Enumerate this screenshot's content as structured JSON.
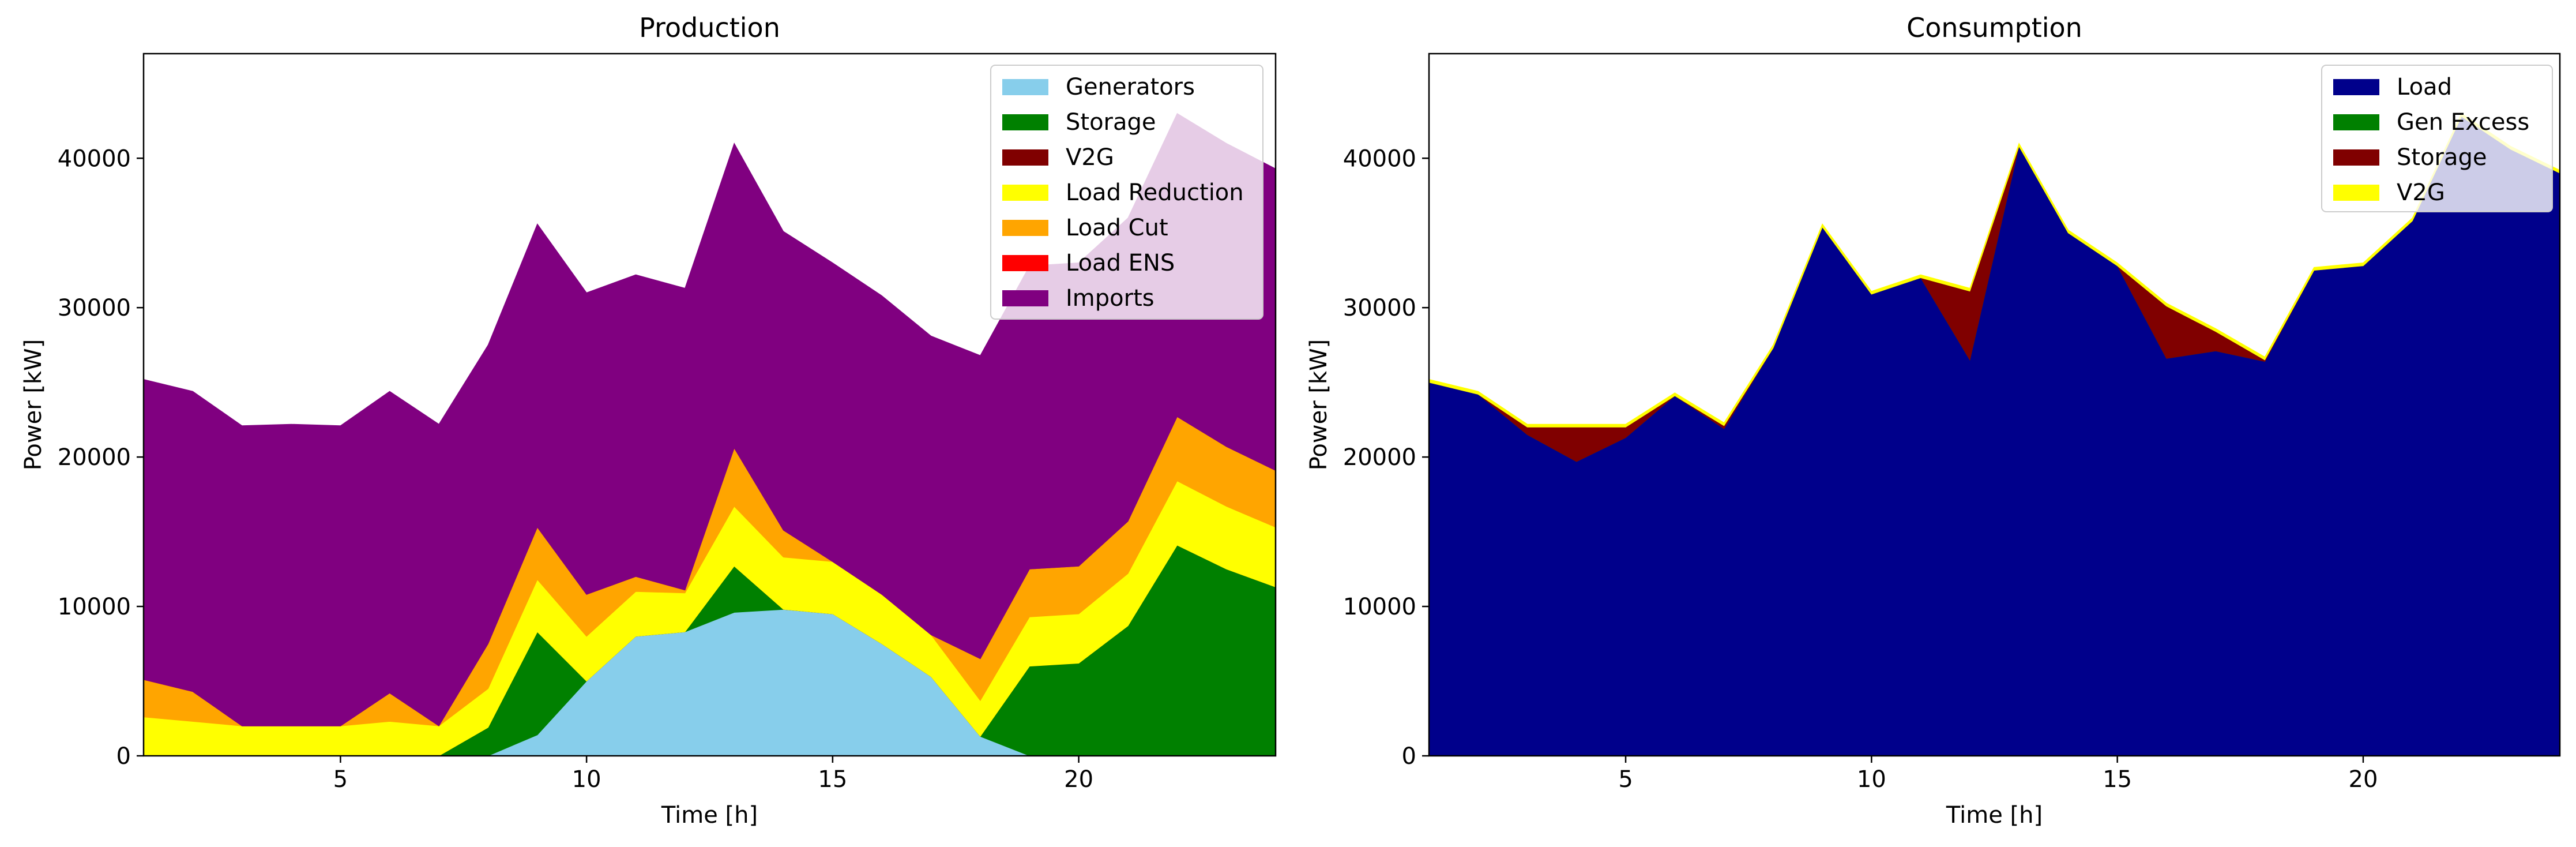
{
  "chart_data": [
    {
      "type": "area",
      "stacked": true,
      "title": "Production",
      "xlabel": "Time [h]",
      "ylabel": "Power [kW]",
      "xlim": [
        1,
        24
      ],
      "ylim": [
        0,
        47000
      ],
      "xticks": [
        5,
        10,
        15,
        20
      ],
      "yticks": [
        0,
        10000,
        20000,
        30000,
        40000
      ],
      "grid": false,
      "legend_position": "top-right",
      "x": [
        1,
        2,
        3,
        4,
        5,
        6,
        7,
        8,
        9,
        10,
        11,
        12,
        13,
        14,
        15,
        16,
        17,
        18,
        19,
        20,
        21,
        22,
        23,
        24
      ],
      "series": [
        {
          "name": "Generators",
          "color": "#87ceeb",
          "values": [
            0,
            0,
            0,
            0,
            0,
            0,
            0,
            0,
            1400,
            5000,
            8000,
            8300,
            9600,
            9800,
            9500,
            7500,
            5300,
            1300,
            0,
            0,
            0,
            0,
            0,
            0
          ]
        },
        {
          "name": "Storage",
          "color": "#008000",
          "values": [
            0,
            0,
            0,
            0,
            0,
            0,
            0,
            1900,
            6900,
            0,
            0,
            0,
            3100,
            0,
            0,
            0,
            0,
            0,
            6000,
            6200,
            8700,
            14100,
            12500,
            11300
          ]
        },
        {
          "name": "V2G",
          "color": "#800000",
          "values": [
            0,
            0,
            0,
            0,
            0,
            0,
            0,
            0,
            0,
            0,
            0,
            0,
            0,
            0,
            0,
            0,
            0,
            0,
            0,
            0,
            0,
            0,
            0,
            0
          ]
        },
        {
          "name": "Load Reduction",
          "color": "#ffff00",
          "values": [
            2600,
            2300,
            2000,
            2000,
            2000,
            2300,
            2000,
            2600,
            3500,
            3000,
            3000,
            2600,
            4000,
            3500,
            3500,
            3300,
            2800,
            2400,
            3300,
            3300,
            3500,
            4300,
            4200,
            4000
          ]
        },
        {
          "name": "Load Cut",
          "color": "#ffa500",
          "values": [
            2500,
            2000,
            0,
            0,
            0,
            1900,
            0,
            3000,
            3500,
            2800,
            1000,
            200,
            3900,
            1800,
            0,
            0,
            0,
            2800,
            3200,
            3200,
            3500,
            4300,
            4000,
            3800
          ]
        },
        {
          "name": "Load ENS",
          "color": "#ff0000",
          "values": [
            0,
            0,
            0,
            0,
            0,
            0,
            0,
            0,
            0,
            0,
            0,
            0,
            0,
            0,
            0,
            0,
            0,
            0,
            0,
            0,
            0,
            0,
            0,
            0
          ]
        },
        {
          "name": "Imports",
          "color": "#800080",
          "values": [
            20100,
            20100,
            20100,
            20200,
            20100,
            20200,
            20200,
            20000,
            20300,
            20200,
            20200,
            20200,
            20400,
            20000,
            20000,
            20000,
            20000,
            20300,
            20300,
            20300,
            20300,
            20300,
            20300,
            20200
          ]
        }
      ]
    },
    {
      "type": "area",
      "stacked": true,
      "title": "Consumption",
      "xlabel": "Time [h]",
      "ylabel": "Power [kW]",
      "xlim": [
        1,
        24
      ],
      "ylim": [
        0,
        47000
      ],
      "xticks": [
        5,
        10,
        15,
        20
      ],
      "yticks": [
        0,
        10000,
        20000,
        30000,
        40000
      ],
      "grid": false,
      "legend_position": "top-right",
      "x": [
        1,
        2,
        3,
        4,
        5,
        6,
        7,
        8,
        9,
        10,
        11,
        12,
        13,
        14,
        15,
        16,
        17,
        18,
        19,
        20,
        21,
        22,
        23,
        24
      ],
      "series": [
        {
          "name": "Load",
          "color": "#00008b",
          "values": [
            25000,
            24200,
            21500,
            19700,
            21300,
            24100,
            21900,
            27300,
            35400,
            30900,
            32000,
            26500,
            40800,
            35000,
            32800,
            26600,
            27100,
            26400,
            32500,
            32800,
            35800,
            42800,
            40600,
            39000
          ]
        },
        {
          "name": "Gen Excess",
          "color": "#008000",
          "values": [
            0,
            0,
            0,
            0,
            0,
            0,
            0,
            0,
            0,
            0,
            0,
            0,
            0,
            0,
            0,
            0,
            0,
            0,
            0,
            0,
            0,
            0,
            0,
            0
          ]
        },
        {
          "name": "Storage",
          "color": "#800000",
          "values": [
            0,
            0,
            500,
            2300,
            700,
            0,
            200,
            0,
            0,
            0,
            0,
            4600,
            0,
            0,
            0,
            3500,
            1300,
            100,
            0,
            0,
            0,
            0,
            0,
            0
          ]
        },
        {
          "name": "V2G",
          "color": "#ffff00",
          "values": [
            200,
            200,
            200,
            200,
            200,
            200,
            200,
            200,
            200,
            200,
            200,
            200,
            200,
            200,
            200,
            200,
            200,
            200,
            200,
            200,
            200,
            200,
            200,
            200
          ]
        }
      ]
    }
  ]
}
